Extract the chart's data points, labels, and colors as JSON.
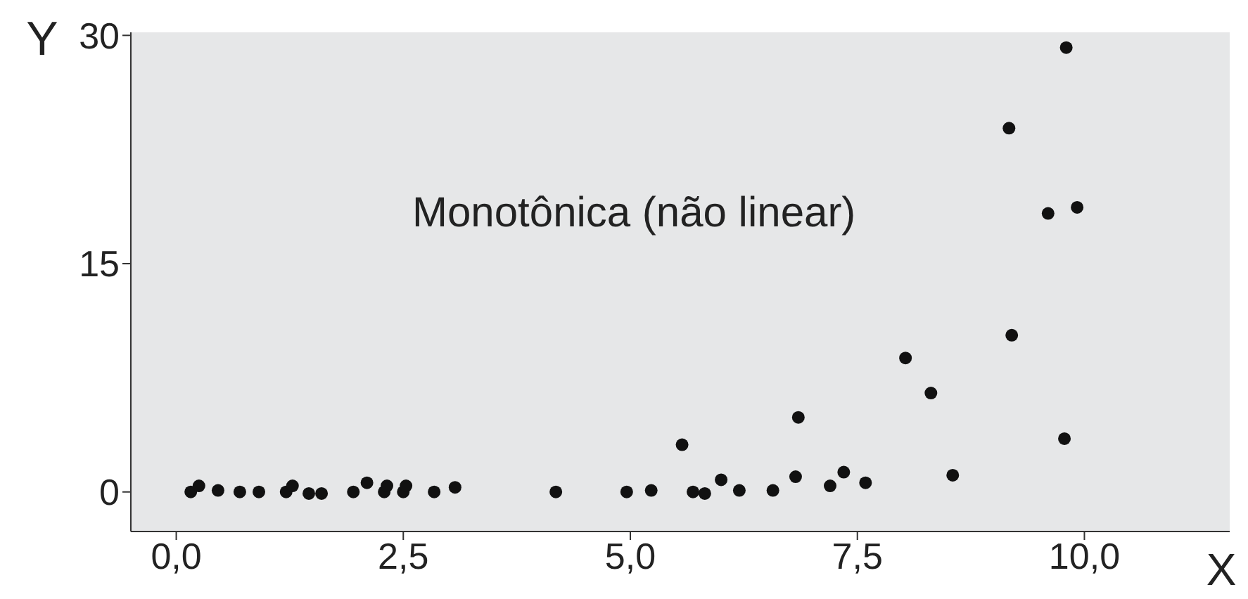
{
  "chart_data": {
    "type": "scatter",
    "xlabel": "X",
    "ylabel": "Y",
    "annotations": [
      "Monotônica (não linear)"
    ],
    "x": [
      0.16,
      0.25,
      0.46,
      0.7,
      0.91,
      1.21,
      1.28,
      1.46,
      1.6,
      1.95,
      2.1,
      2.29,
      2.32,
      2.5,
      2.53,
      2.84,
      3.07,
      4.18,
      4.96,
      5.23,
      5.57,
      5.69,
      5.82,
      6.0,
      6.2,
      6.57,
      6.82,
      6.85,
      7.2,
      7.35,
      7.59,
      8.03,
      8.31,
      8.55,
      9.2,
      9.78,
      9.8,
      9.17,
      9.6,
      9.92
    ],
    "series": [
      {
        "color": "#111111",
        "values": [
          0,
          0.4,
          0.1,
          0,
          0,
          0,
          0.4,
          -0.1,
          -0.1,
          0,
          0.6,
          0,
          0.4,
          0,
          0.4,
          0,
          0.3,
          0,
          0,
          0.1,
          3.1,
          0,
          -0.1,
          0.8,
          0.1,
          0.1,
          1.0,
          4.9,
          0.4,
          1.3,
          0.6,
          8.8,
          6.5,
          1.1,
          10.3,
          3.5,
          29.2,
          23.9,
          18.3,
          18.7
        ]
      }
    ],
    "xlim": [
      -0.5,
      11.6
    ],
    "ylim": [
      -2.6,
      30.2
    ],
    "xticks": [
      {
        "value": 0,
        "label": "0,0"
      },
      {
        "value": 2.5,
        "label": "2,5"
      },
      {
        "value": 5,
        "label": "5,0"
      },
      {
        "value": 7.5,
        "label": "7,5"
      },
      {
        "value": 10,
        "label": "10,0"
      }
    ],
    "yticks": [
      0,
      15,
      30
    ],
    "grid": false,
    "marker": "circle"
  }
}
